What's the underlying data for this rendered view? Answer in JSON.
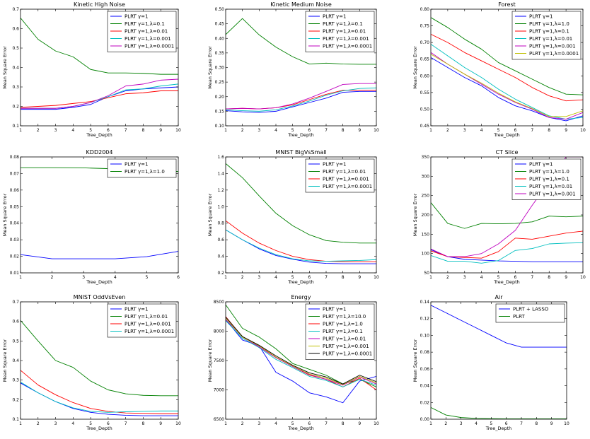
{
  "chart_data": [
    {
      "type": "line",
      "title": "Kinetic High Noise",
      "xlabel": "Tree_Depth",
      "ylabel": "Mean Square Error",
      "x": [
        1,
        2,
        3,
        4,
        5,
        6,
        7,
        8,
        9,
        10
      ],
      "xlim": [
        1,
        10
      ],
      "ylim": [
        0.1,
        0.7
      ],
      "xticks": [
        "1",
        "2",
        "3",
        "4",
        "5",
        "6",
        "7",
        "8",
        "9",
        "10"
      ],
      "yticks": [
        "0.1",
        "0.2",
        "0.3",
        "0.4",
        "0.5",
        "0.6",
        "0.7"
      ],
      "legend_position": "top-right",
      "series": [
        {
          "name": "PLRT γ=1",
          "color": "#0000ff",
          "values": [
            0.185,
            0.185,
            0.185,
            0.195,
            0.21,
            0.25,
            0.28,
            0.29,
            0.295,
            0.3
          ]
        },
        {
          "name": "PLRT γ=1,λ=0.1",
          "color": "#008000",
          "values": [
            0.655,
            0.545,
            0.485,
            0.455,
            0.39,
            0.372,
            0.372,
            0.37,
            0.365,
            0.365
          ]
        },
        {
          "name": "PLRT γ=1,λ=0.01",
          "color": "#ff0000",
          "values": [
            0.195,
            0.2,
            0.205,
            0.215,
            0.225,
            0.245,
            0.265,
            0.27,
            0.28,
            0.28
          ]
        },
        {
          "name": "PLRT γ=1,λ=0.001",
          "color": "#00bfbf",
          "values": [
            0.19,
            0.19,
            0.19,
            0.2,
            0.22,
            0.25,
            0.285,
            0.29,
            0.305,
            0.315
          ]
        },
        {
          "name": "PLRT γ=1,λ=0.0001",
          "color": "#bf00bf",
          "values": [
            0.19,
            0.19,
            0.19,
            0.2,
            0.22,
            0.255,
            0.305,
            0.315,
            0.335,
            0.34
          ]
        }
      ]
    },
    {
      "type": "line",
      "title": "Kinetic Medium Noise",
      "xlabel": "Tree_Depth",
      "ylabel": "Mean Square Error",
      "x": [
        1,
        2,
        3,
        4,
        5,
        6,
        7,
        8,
        9,
        10
      ],
      "xlim": [
        1,
        10
      ],
      "ylim": [
        0.1,
        0.5
      ],
      "xticks": [
        "1",
        "2",
        "3",
        "4",
        "5",
        "6",
        "7",
        "8",
        "9",
        "10"
      ],
      "yticks": [
        "0.10",
        "0.15",
        "0.20",
        "0.25",
        "0.30",
        "0.35",
        "0.40",
        "0.45",
        "0.50"
      ],
      "legend_position": "top-right",
      "series": [
        {
          "name": "PLRT γ=1",
          "color": "#0000ff",
          "values": [
            0.152,
            0.148,
            0.146,
            0.15,
            0.165,
            0.18,
            0.195,
            0.215,
            0.218,
            0.218
          ]
        },
        {
          "name": "PLRT γ=1,λ=0.1",
          "color": "#008000",
          "values": [
            0.413,
            0.468,
            0.412,
            0.37,
            0.337,
            0.312,
            0.315,
            0.312,
            0.311,
            0.311
          ]
        },
        {
          "name": "PLRT γ=1,λ=0.01",
          "color": "#ff0000",
          "values": [
            0.158,
            0.16,
            0.158,
            0.162,
            0.172,
            0.19,
            0.208,
            0.222,
            0.222,
            0.222
          ]
        },
        {
          "name": "PLRT γ=1,λ=0.001",
          "color": "#00bfbf",
          "values": [
            0.155,
            0.152,
            0.15,
            0.155,
            0.168,
            0.185,
            0.205,
            0.22,
            0.228,
            0.23
          ]
        },
        {
          "name": "PLRT γ=1,λ=0.0001",
          "color": "#bf00bf",
          "values": [
            0.158,
            0.16,
            0.158,
            0.162,
            0.175,
            0.195,
            0.218,
            0.242,
            0.245,
            0.245
          ]
        }
      ]
    },
    {
      "type": "line",
      "title": "Forest",
      "xlabel": "Tree_Depth",
      "ylabel": "Mean Square Error",
      "x": [
        1,
        2,
        3,
        4,
        5,
        6,
        7,
        8,
        9,
        10
      ],
      "xlim": [
        1,
        10
      ],
      "ylim": [
        0.45,
        0.8
      ],
      "xticks": [
        "1",
        "2",
        "3",
        "4",
        "5",
        "6",
        "7",
        "8",
        "9",
        "10"
      ],
      "yticks": [
        "0.45",
        "0.50",
        "0.55",
        "0.60",
        "0.65",
        "0.70",
        "0.75",
        "0.80"
      ],
      "legend_position": "top-right",
      "series": [
        {
          "name": "PLRT γ=1",
          "color": "#0000ff",
          "values": [
            0.655,
            0.625,
            0.595,
            0.57,
            0.535,
            0.51,
            0.495,
            0.475,
            0.465,
            0.48
          ]
        },
        {
          "name": "PLRT γ=1,λ=1.0",
          "color": "#008000",
          "values": [
            0.775,
            0.745,
            0.71,
            0.68,
            0.64,
            0.615,
            0.59,
            0.565,
            0.545,
            0.543
          ]
        },
        {
          "name": "PLRT γ=1,λ=0.1",
          "color": "#ff0000",
          "values": [
            0.725,
            0.7,
            0.67,
            0.645,
            0.62,
            0.595,
            0.565,
            0.54,
            0.525,
            0.528
          ]
        },
        {
          "name": "PLRT γ=1,λ=0.01",
          "color": "#00bfbf",
          "values": [
            0.695,
            0.66,
            0.625,
            0.595,
            0.56,
            0.53,
            0.505,
            0.48,
            0.47,
            0.475
          ]
        },
        {
          "name": "PLRT γ=1,λ=0.001",
          "color": "#bf00bf",
          "values": [
            0.67,
            0.635,
            0.605,
            0.575,
            0.545,
            0.52,
            0.5,
            0.475,
            0.47,
            0.49
          ]
        },
        {
          "name": "PLRT γ=1,λ=0.0001",
          "color": "#bfbf00",
          "values": [
            0.665,
            0.635,
            0.605,
            0.578,
            0.548,
            0.522,
            0.502,
            0.478,
            0.478,
            0.495
          ]
        }
      ]
    },
    {
      "type": "line",
      "title": "KDD2004",
      "xlabel": "Tree_Depth",
      "ylabel": "Mean Square Error",
      "x": [
        1,
        2,
        3,
        4,
        5,
        6
      ],
      "xlim": [
        1,
        6
      ],
      "ylim": [
        0.01,
        0.08
      ],
      "xticks": [
        "1",
        "2",
        "3",
        "4",
        "5",
        "6"
      ],
      "yticks": [
        "0.01",
        "0.02",
        "0.03",
        "0.04",
        "0.05",
        "0.06",
        "0.07",
        "0.08"
      ],
      "legend_position": "top-right",
      "series": [
        {
          "name": "PLRT γ=1",
          "color": "#0000ff",
          "values": [
            0.021,
            0.0185,
            0.0185,
            0.0185,
            0.0198,
            0.023
          ]
        },
        {
          "name": "PLRT γ=1,λ=1.0",
          "color": "#008000",
          "values": [
            0.0735,
            0.0735,
            0.0734,
            0.0728,
            0.0722,
            0.0712
          ]
        }
      ]
    },
    {
      "type": "line",
      "title": "MNIST BigVsSmall",
      "xlabel": "Tree_Depth",
      "ylabel": "Mean Square Error",
      "x": [
        1,
        2,
        3,
        4,
        5,
        6,
        7,
        8,
        9,
        10
      ],
      "xlim": [
        1,
        10
      ],
      "ylim": [
        0.2,
        1.6
      ],
      "xticks": [
        "1",
        "2",
        "3",
        "4",
        "5",
        "6",
        "7",
        "8",
        "9",
        "10"
      ],
      "yticks": [
        "0.2",
        "0.4",
        "0.6",
        "0.8",
        "1.0",
        "1.2",
        "1.4",
        "1.6"
      ],
      "legend_position": "top-right",
      "series": [
        {
          "name": "PLRT γ=1",
          "color": "#0000ff",
          "values": [
            0.72,
            0.6,
            0.49,
            0.41,
            0.365,
            0.33,
            0.315,
            0.31,
            0.31,
            0.31
          ]
        },
        {
          "name": "PLRT γ=1,λ=0.01",
          "color": "#008000",
          "values": [
            1.52,
            1.35,
            1.13,
            0.92,
            0.77,
            0.66,
            0.59,
            0.57,
            0.56,
            0.56
          ]
        },
        {
          "name": "PLRT γ=1,λ=0.001",
          "color": "#ff0000",
          "values": [
            0.83,
            0.68,
            0.56,
            0.47,
            0.4,
            0.36,
            0.34,
            0.335,
            0.335,
            0.335
          ]
        },
        {
          "name": "PLRT γ=1,λ=0.0001",
          "color": "#00bfbf",
          "values": [
            0.72,
            0.6,
            0.5,
            0.42,
            0.37,
            0.345,
            0.34,
            0.345,
            0.35,
            0.36
          ]
        }
      ]
    },
    {
      "type": "line",
      "title": "CT Slice",
      "xlabel": "Tree_Depth",
      "ylabel": "Mean Square Error",
      "x": [
        1,
        2,
        3,
        4,
        5,
        6,
        7,
        8,
        9,
        10
      ],
      "xlim": [
        1,
        10
      ],
      "ylim": [
        50,
        350
      ],
      "xticks": [
        "1",
        "2",
        "3",
        "4",
        "5",
        "6",
        "7",
        "8",
        "9",
        "10"
      ],
      "yticks": [
        "50",
        "100",
        "150",
        "200",
        "250",
        "300",
        "350"
      ],
      "legend_position": "top-right",
      "series": [
        {
          "name": "PLRT γ=1",
          "color": "#0000ff",
          "values": [
            110,
            92,
            85,
            83,
            81,
            80,
            79,
            79,
            79,
            79
          ]
        },
        {
          "name": "PLRT γ=1,λ=1.0",
          "color": "#008000",
          "values": [
            232,
            178,
            165,
            178,
            177,
            178,
            182,
            197,
            195,
            197
          ]
        },
        {
          "name": "PLRT γ=1,λ=0.1",
          "color": "#ff0000",
          "values": [
            107,
            92,
            90,
            88,
            105,
            140,
            137,
            145,
            153,
            158
          ]
        },
        {
          "name": "PLRT γ=1,λ=0.01",
          "color": "#00bfbf",
          "values": [
            95,
            80,
            80,
            75,
            82,
            108,
            113,
            125,
            127,
            128
          ]
        },
        {
          "name": "PLRT γ=1,λ=0.001",
          "color": "#bf00bf",
          "values": [
            112,
            92,
            92,
            100,
            125,
            160,
            225,
            285,
            350,
            350
          ]
        }
      ]
    },
    {
      "type": "line",
      "title": "MNIST OddVsEven",
      "xlabel": "Tree_Depth",
      "ylabel": "Mean Square Error",
      "x": [
        1,
        2,
        3,
        4,
        5,
        6,
        7,
        8,
        9,
        10
      ],
      "xlim": [
        1,
        10
      ],
      "ylim": [
        0.1,
        0.7
      ],
      "xticks": [
        "1",
        "2",
        "3",
        "4",
        "5",
        "6",
        "7",
        "8",
        "9",
        "10"
      ],
      "yticks": [
        "0.1",
        "0.2",
        "0.3",
        "0.4",
        "0.5",
        "0.6",
        "0.7"
      ],
      "legend_position": "top-right",
      "series": [
        {
          "name": "PLRT γ=1",
          "color": "#0000ff",
          "values": [
            0.285,
            0.235,
            0.19,
            0.155,
            0.135,
            0.125,
            0.12,
            0.118,
            0.118,
            0.118
          ]
        },
        {
          "name": "PLRT γ=1,λ=0.01",
          "color": "#008000",
          "values": [
            0.605,
            0.5,
            0.4,
            0.365,
            0.295,
            0.25,
            0.23,
            0.222,
            0.22,
            0.22
          ]
        },
        {
          "name": "PLRT γ=1,λ=0.001",
          "color": "#ff0000",
          "values": [
            0.35,
            0.275,
            0.225,
            0.185,
            0.155,
            0.14,
            0.132,
            0.13,
            0.128,
            0.128
          ]
        },
        {
          "name": "PLRT γ=1,λ=0.0001",
          "color": "#00bfbf",
          "values": [
            0.29,
            0.235,
            0.19,
            0.158,
            0.14,
            0.135,
            0.138,
            0.14,
            0.142,
            0.142
          ]
        }
      ]
    },
    {
      "type": "line",
      "title": "Energy",
      "xlabel": "Tree_Depth",
      "ylabel": "Mean Square Error",
      "x": [
        1,
        2,
        3,
        4,
        5,
        6,
        7,
        8,
        9,
        10
      ],
      "xlim": [
        1,
        10
      ],
      "ylim": [
        6500,
        8500
      ],
      "xticks": [
        "1",
        "2",
        "3",
        "4",
        "5",
        "6",
        "7",
        "8",
        "9",
        "10"
      ],
      "yticks": [
        "6500",
        "7000",
        "7500",
        "8000",
        "8500"
      ],
      "legend_position": "top-right",
      "series": [
        {
          "name": "PLRT γ=1",
          "color": "#0000ff",
          "values": [
            8200,
            7850,
            7750,
            7300,
            7150,
            6950,
            6880,
            6780,
            7150,
            7230
          ]
        },
        {
          "name": "PLRT γ=1,λ=10.0",
          "color": "#008000",
          "values": [
            8450,
            8050,
            7900,
            7700,
            7450,
            7350,
            7250,
            7100,
            7180,
            7050
          ]
        },
        {
          "name": "PLRT γ=1,λ=1.0",
          "color": "#ff0000",
          "values": [
            8250,
            7900,
            7750,
            7550,
            7400,
            7250,
            7180,
            7050,
            7200,
            7000
          ]
        },
        {
          "name": "PLRT γ=1,λ=0.1",
          "color": "#00bfbf",
          "values": [
            8180,
            7880,
            7720,
            7520,
            7380,
            7230,
            7160,
            7050,
            7180,
            7080
          ]
        },
        {
          "name": "PLRT γ=1,λ=0.01",
          "color": "#bf00bf",
          "values": [
            8200,
            7900,
            7730,
            7550,
            7400,
            7260,
            7180,
            7080,
            7220,
            7100
          ]
        },
        {
          "name": "PLRT γ=1,λ=0.001",
          "color": "#bfbf00",
          "values": [
            8220,
            7900,
            7750,
            7560,
            7410,
            7270,
            7200,
            7090,
            7230,
            7120
          ]
        },
        {
          "name": "PLRT γ=1,λ=0.0001",
          "color": "#000000",
          "values": [
            8240,
            7910,
            7760,
            7580,
            7420,
            7290,
            7220,
            7100,
            7250,
            7140
          ]
        }
      ]
    },
    {
      "type": "line",
      "title": "Air",
      "xlabel": "Tree_Depth",
      "ylabel": "Mean Square Error",
      "x": [
        1,
        2,
        3,
        4,
        5,
        6,
        7,
        8,
        9,
        10
      ],
      "xlim": [
        1,
        10
      ],
      "ylim": [
        0.0,
        0.14
      ],
      "xticks": [
        "1",
        "2",
        "3",
        "4",
        "5",
        "6",
        "7",
        "8",
        "9",
        "10"
      ],
      "yticks": [
        "0.00",
        "0.02",
        "0.04",
        "0.06",
        "0.08",
        "0.10",
        "0.12",
        "0.14"
      ],
      "legend_position": "top-right",
      "series": [
        {
          "name": "PLRT + LASSO",
          "color": "#0000ff",
          "values": [
            0.136,
            0.127,
            0.118,
            0.109,
            0.1,
            0.091,
            0.086,
            0.086,
            0.086,
            0.086
          ]
        },
        {
          "name": "PLRT",
          "color": "#008000",
          "values": [
            0.014,
            0.005,
            0.002,
            0.001,
            0.0007,
            0.0005,
            0.0005,
            0.0005,
            0.0005,
            0.0005
          ]
        }
      ]
    }
  ]
}
